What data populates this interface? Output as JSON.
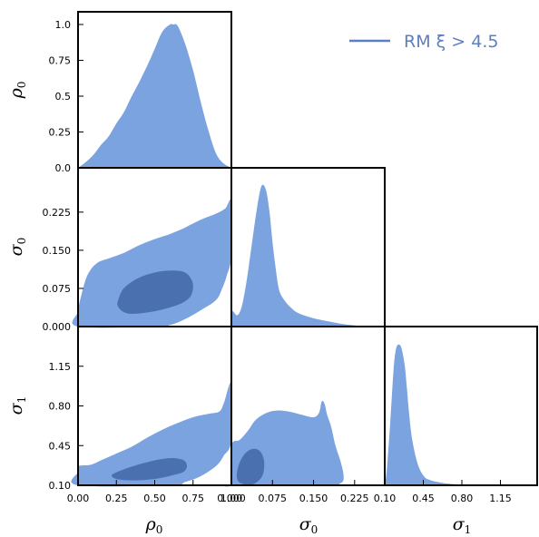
{
  "chart_data": {
    "type": "corner",
    "colors": {
      "outer": "#7aa3e0",
      "inner": "#4a70b0",
      "legend": "#5b7fc0"
    },
    "legend": {
      "label": "RM ξ > 4.5",
      "placement": "top-right"
    },
    "params": [
      {
        "name": "rho0",
        "symbol": "ρ",
        "sub": "0",
        "range": [
          0.0,
          1.0
        ],
        "ticks": [
          "0.00",
          "0.25",
          "0.50",
          "0.75",
          "1.00"
        ],
        "ticks_y": [
          "0.0",
          "0.25",
          "0.5",
          "0.75",
          "1.0"
        ]
      },
      {
        "name": "sigma0",
        "symbol": "σ",
        "sub": "0",
        "range": [
          0.0,
          0.28
        ],
        "ticks": [
          "0.000",
          "0.075",
          "0.150",
          "0.225"
        ]
      },
      {
        "name": "sigma1",
        "symbol": "σ",
        "sub": "1",
        "range": [
          0.1,
          1.5
        ],
        "ticks": [
          "0.10",
          "0.45",
          "0.80",
          "1.15"
        ]
      }
    ],
    "marginals": [
      {
        "param": "rho0",
        "x": [
          0.0,
          0.05,
          0.1,
          0.15,
          0.2,
          0.25,
          0.3,
          0.35,
          0.4,
          0.45,
          0.5,
          0.55,
          0.6,
          0.62,
          0.65,
          0.7,
          0.75,
          0.8,
          0.85,
          0.9,
          0.95,
          1.0
        ],
        "y": [
          0.0,
          0.04,
          0.09,
          0.16,
          0.22,
          0.31,
          0.39,
          0.5,
          0.6,
          0.71,
          0.83,
          0.95,
          1.0,
          1.0,
          0.99,
          0.86,
          0.68,
          0.46,
          0.26,
          0.1,
          0.03,
          0.0
        ]
      },
      {
        "param": "sigma0",
        "x": [
          0.0,
          0.005,
          0.01,
          0.015,
          0.02,
          0.025,
          0.03,
          0.035,
          0.04,
          0.045,
          0.05,
          0.055,
          0.06,
          0.065,
          0.07,
          0.075,
          0.08,
          0.085,
          0.09,
          0.1,
          0.11,
          0.12,
          0.14,
          0.16,
          0.18,
          0.2,
          0.22,
          0.25,
          0.28
        ],
        "y": [
          0.12,
          0.1,
          0.08,
          0.1,
          0.16,
          0.26,
          0.38,
          0.52,
          0.66,
          0.8,
          0.92,
          1.0,
          1.0,
          0.94,
          0.8,
          0.6,
          0.44,
          0.3,
          0.23,
          0.17,
          0.13,
          0.1,
          0.07,
          0.05,
          0.035,
          0.02,
          0.01,
          0.0,
          0.0
        ]
      },
      {
        "param": "sigma1",
        "x": [
          0.1,
          0.12,
          0.15,
          0.18,
          0.2,
          0.22,
          0.25,
          0.28,
          0.3,
          0.32,
          0.35,
          0.4,
          0.45,
          0.5,
          0.6,
          0.7,
          0.8,
          1.0,
          1.2,
          1.5
        ],
        "y": [
          0.0,
          0.12,
          0.45,
          0.82,
          0.96,
          1.0,
          0.98,
          0.86,
          0.7,
          0.52,
          0.32,
          0.15,
          0.07,
          0.04,
          0.02,
          0.01,
          0.005,
          0.0,
          0.0,
          0.0
        ]
      }
    ],
    "contours": [
      {
        "x": "rho0",
        "y": "sigma0",
        "outer": [
          [
            0.0,
            0.03
          ],
          [
            0.02,
            0.06
          ],
          [
            0.06,
            0.1
          ],
          [
            0.12,
            0.124
          ],
          [
            0.2,
            0.134
          ],
          [
            0.3,
            0.145
          ],
          [
            0.4,
            0.16
          ],
          [
            0.5,
            0.172
          ],
          [
            0.6,
            0.182
          ],
          [
            0.7,
            0.195
          ],
          [
            0.8,
            0.21
          ],
          [
            0.9,
            0.222
          ],
          [
            0.96,
            0.232
          ],
          [
            1.0,
            0.245
          ],
          [
            1.0,
            0.14
          ],
          [
            0.97,
            0.1
          ],
          [
            0.94,
            0.075
          ],
          [
            0.9,
            0.052
          ],
          [
            0.8,
            0.032
          ],
          [
            0.7,
            0.015
          ],
          [
            0.6,
            0.003
          ],
          [
            0.5,
            0.0
          ],
          [
            0.0,
            0.0
          ]
        ],
        "inner": [
          [
            0.26,
            0.05
          ],
          [
            0.29,
            0.072
          ],
          [
            0.35,
            0.088
          ],
          [
            0.43,
            0.1
          ],
          [
            0.53,
            0.108
          ],
          [
            0.63,
            0.11
          ],
          [
            0.7,
            0.106
          ],
          [
            0.74,
            0.092
          ],
          [
            0.75,
            0.076
          ],
          [
            0.73,
            0.058
          ],
          [
            0.67,
            0.045
          ],
          [
            0.57,
            0.035
          ],
          [
            0.46,
            0.028
          ],
          [
            0.35,
            0.025
          ],
          [
            0.29,
            0.03
          ],
          [
            0.26,
            0.04
          ]
        ]
      },
      {
        "x": "rho0",
        "y": "sigma1",
        "outer": [
          [
            0.0,
            0.22
          ],
          [
            0.0,
            0.27
          ],
          [
            0.08,
            0.28
          ],
          [
            0.15,
            0.32
          ],
          [
            0.25,
            0.38
          ],
          [
            0.35,
            0.44
          ],
          [
            0.45,
            0.52
          ],
          [
            0.55,
            0.59
          ],
          [
            0.65,
            0.65
          ],
          [
            0.75,
            0.7
          ],
          [
            0.85,
            0.73
          ],
          [
            0.92,
            0.75
          ],
          [
            0.95,
            0.82
          ],
          [
            1.0,
            1.0
          ],
          [
            1.0,
            0.5
          ],
          [
            0.95,
            0.36
          ],
          [
            0.9,
            0.27
          ],
          [
            0.8,
            0.18
          ],
          [
            0.7,
            0.13
          ],
          [
            0.6,
            0.1
          ],
          [
            0.0,
            0.1
          ]
        ],
        "inner": [
          [
            0.22,
            0.19
          ],
          [
            0.26,
            0.22
          ],
          [
            0.34,
            0.26
          ],
          [
            0.44,
            0.3
          ],
          [
            0.54,
            0.33
          ],
          [
            0.62,
            0.34
          ],
          [
            0.69,
            0.32
          ],
          [
            0.71,
            0.27
          ],
          [
            0.69,
            0.22
          ],
          [
            0.62,
            0.19
          ],
          [
            0.52,
            0.16
          ],
          [
            0.41,
            0.145
          ],
          [
            0.31,
            0.145
          ],
          [
            0.24,
            0.16
          ]
        ]
      },
      {
        "x": "sigma0",
        "y": "sigma1",
        "outer": [
          [
            0.0,
            0.12
          ],
          [
            0.0,
            0.45
          ],
          [
            0.015,
            0.5
          ],
          [
            0.03,
            0.58
          ],
          [
            0.045,
            0.68
          ],
          [
            0.065,
            0.74
          ],
          [
            0.085,
            0.76
          ],
          [
            0.105,
            0.75
          ],
          [
            0.13,
            0.72
          ],
          [
            0.15,
            0.7
          ],
          [
            0.16,
            0.74
          ],
          [
            0.165,
            0.84
          ],
          [
            0.17,
            0.82
          ],
          [
            0.175,
            0.72
          ],
          [
            0.182,
            0.62
          ],
          [
            0.19,
            0.45
          ],
          [
            0.2,
            0.3
          ],
          [
            0.205,
            0.18
          ],
          [
            0.2,
            0.12
          ],
          [
            0.17,
            0.1
          ],
          [
            0.0,
            0.1
          ]
        ],
        "inner": [
          [
            0.01,
            0.2
          ],
          [
            0.015,
            0.3
          ],
          [
            0.025,
            0.38
          ],
          [
            0.038,
            0.42
          ],
          [
            0.05,
            0.41
          ],
          [
            0.058,
            0.35
          ],
          [
            0.06,
            0.26
          ],
          [
            0.055,
            0.17
          ],
          [
            0.04,
            0.11
          ],
          [
            0.022,
            0.11
          ],
          [
            0.012,
            0.14
          ]
        ]
      }
    ]
  }
}
